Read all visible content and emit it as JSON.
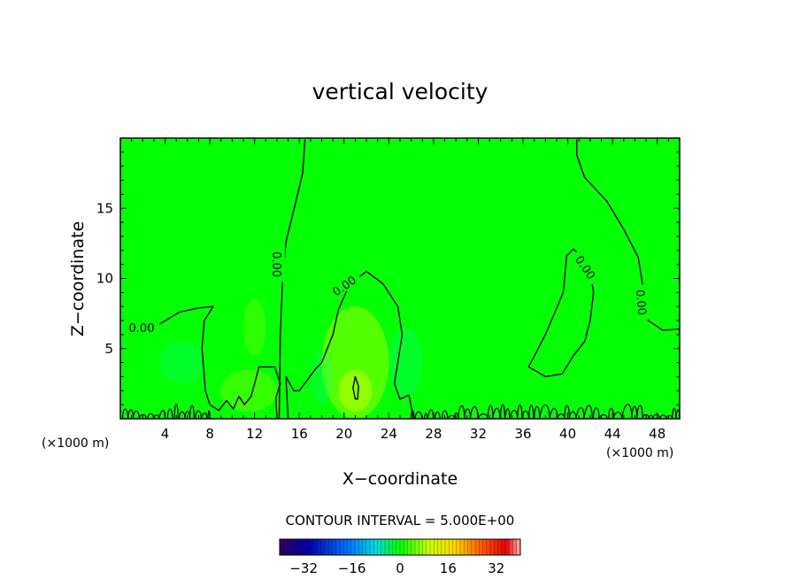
{
  "chart_data": {
    "type": "contour",
    "title": "vertical velocity",
    "xlabel": "X−coordinate",
    "ylabel": "Z−coordinate",
    "x_unit": "(×1000 m)",
    "xlim": [
      0,
      50
    ],
    "ylim": [
      0,
      20
    ],
    "x_ticks": [
      4,
      8,
      12,
      16,
      20,
      24,
      28,
      32,
      36,
      40,
      44,
      48
    ],
    "y_ticks": [
      5,
      10,
      15
    ],
    "contour_label": "0.00",
    "contour_interval_text": "CONTOUR INTERVAL = 5.000E+00",
    "colorbar": {
      "ticks": [
        -32,
        -16,
        0,
        16,
        32
      ],
      "tick_labels": [
        "−32",
        "−16",
        "0",
        "16",
        "32"
      ],
      "range": [
        -40,
        40
      ]
    },
    "background_color": "#05ff05",
    "grid": false,
    "legend": "none",
    "zero_contours": [
      {
        "name": "left-surface-region",
        "points": [
          [
            0.8,
            6.5
          ],
          [
            3.2,
            6.6
          ],
          [
            5.3,
            7.6
          ],
          [
            7,
            7.9
          ],
          [
            8.3,
            8.0
          ],
          [
            7.5,
            7.0
          ],
          [
            7.3,
            5.0
          ],
          [
            7.6,
            2.0
          ],
          [
            8.0,
            1.0
          ],
          [
            8.8,
            0.6
          ],
          [
            9.5,
            1.3
          ],
          [
            10.1,
            0.7
          ],
          [
            10.6,
            1.6
          ],
          [
            11.1,
            1.0
          ],
          [
            11.7,
            1.6
          ],
          [
            12.4,
            3.7
          ],
          [
            13.8,
            3.7
          ],
          [
            14.3,
            2.5
          ],
          [
            13.9,
            1.5
          ],
          [
            14.0,
            0.0
          ]
        ]
      },
      {
        "name": "left-tall",
        "points": [
          [
            14.2,
            0.0
          ],
          [
            14.3,
            6.0
          ],
          [
            14.5,
            10.0
          ],
          [
            14.8,
            12.6
          ],
          [
            15.7,
            15.5
          ],
          [
            16.3,
            17.5
          ],
          [
            16.5,
            19.9
          ]
        ]
      },
      {
        "name": "central-updraft",
        "points": [
          [
            15.0,
            0.0
          ],
          [
            14.8,
            3.0
          ],
          [
            15.5,
            2.0
          ],
          [
            16.0,
            2.0
          ],
          [
            17.5,
            3.6
          ],
          [
            18.0,
            4.0
          ],
          [
            19.0,
            6.0
          ],
          [
            19.5,
            7.8
          ],
          [
            20.5,
            9.6
          ],
          [
            22.0,
            10.5
          ],
          [
            23.5,
            9.6
          ],
          [
            24.8,
            8.0
          ],
          [
            25.2,
            6.0
          ],
          [
            24.5,
            2.5
          ],
          [
            25.0,
            1.4
          ],
          [
            25.8,
            1.7
          ],
          [
            26.2,
            0.0
          ]
        ]
      },
      {
        "name": "center-cell",
        "points": [
          [
            21.0,
            1.4
          ],
          [
            20.8,
            2.2
          ],
          [
            21.0,
            3.0
          ],
          [
            21.3,
            2.3
          ],
          [
            21.2,
            1.4
          ],
          [
            21.0,
            1.4
          ]
        ]
      },
      {
        "name": "right-cell",
        "points": [
          [
            36.5,
            3.7
          ],
          [
            38.0,
            6.0
          ],
          [
            39.6,
            9.0
          ],
          [
            39.9,
            11.6
          ],
          [
            40.5,
            12.1
          ],
          [
            41.3,
            11.5
          ],
          [
            42.0,
            10.5
          ],
          [
            42.3,
            9.0
          ],
          [
            42.0,
            7.0
          ],
          [
            41.5,
            5.5
          ],
          [
            40.5,
            4.5
          ],
          [
            39.5,
            3.2
          ],
          [
            38.0,
            3.0
          ],
          [
            36.5,
            3.7
          ]
        ]
      },
      {
        "name": "right-tall",
        "points": [
          [
            40.8,
            19.9
          ],
          [
            40.8,
            18.8
          ],
          [
            41.5,
            17.2
          ],
          [
            43.5,
            15.5
          ],
          [
            45.0,
            13.5
          ],
          [
            46.3,
            11.5
          ],
          [
            46.8,
            9.0
          ],
          [
            47.2,
            7.0
          ],
          [
            48.5,
            6.3
          ],
          [
            50.0,
            6.4
          ]
        ]
      }
    ],
    "surface_wiggle_x_ranges": [
      [
        0.2,
        8.0
      ],
      [
        26.0,
        50.0
      ]
    ],
    "contour_label_positions": [
      {
        "x": 1.9,
        "y": 6.5,
        "rotate": 0
      },
      {
        "x": 14.0,
        "y": 11.0,
        "rotate": 90
      },
      {
        "x": 20.0,
        "y": 9.5,
        "rotate": -35
      },
      {
        "x": 41.6,
        "y": 10.8,
        "rotate": 55
      },
      {
        "x": 46.6,
        "y": 8.3,
        "rotate": 85
      }
    ],
    "faint_features": [
      {
        "x": 21.0,
        "y": 4.0,
        "rx": 3.0,
        "ry": 4.0,
        "color": "#e6ff00",
        "opacity": 0.35
      },
      {
        "x": 21.0,
        "y": 2.0,
        "rx": 1.5,
        "ry": 1.5,
        "color": "#ffff00",
        "opacity": 0.35
      },
      {
        "x": 11.5,
        "y": 2.0,
        "rx": 2.5,
        "ry": 1.5,
        "color": "#a8ff00",
        "opacity": 0.3
      },
      {
        "x": 5.5,
        "y": 4.0,
        "rx": 2.0,
        "ry": 1.5,
        "color": "#00ff99",
        "opacity": 0.25
      },
      {
        "x": 25.5,
        "y": 4.0,
        "rx": 1.5,
        "ry": 2.5,
        "color": "#00ff99",
        "opacity": 0.25
      },
      {
        "x": 12.0,
        "y": 6.5,
        "rx": 1.0,
        "ry": 2.0,
        "color": "#a8ff00",
        "opacity": 0.25
      },
      {
        "x": 18.0,
        "y": 3.0,
        "rx": 1.0,
        "ry": 2.0,
        "color": "#00ffb0",
        "opacity": 0.2
      }
    ]
  }
}
